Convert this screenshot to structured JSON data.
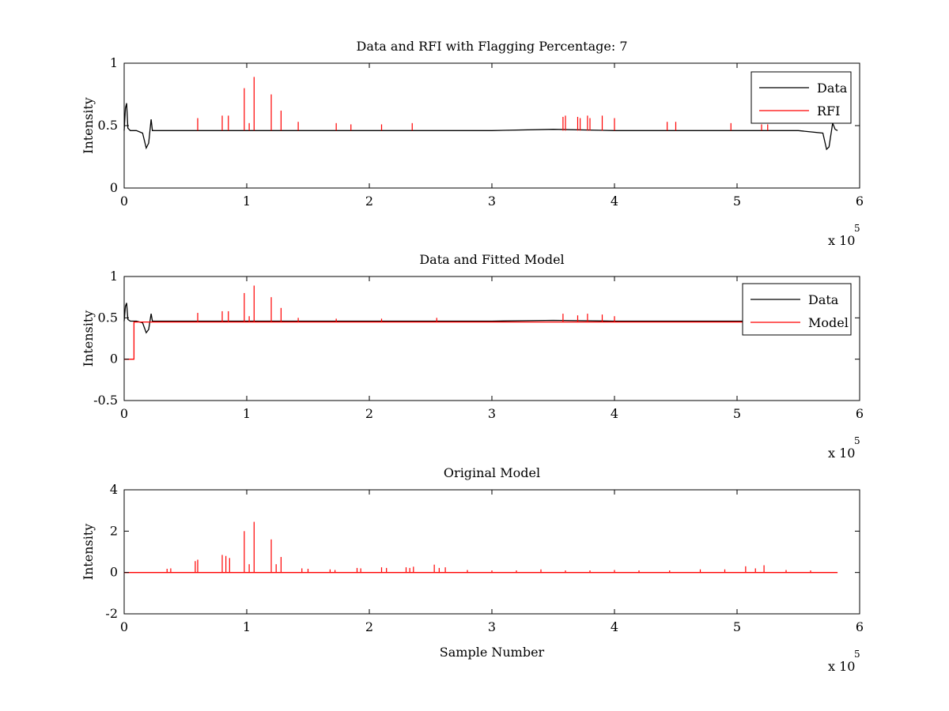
{
  "chart_data": [
    {
      "type": "line",
      "title": "Data and RFI with Flagging Percentage: 7",
      "xlabel": "",
      "ylabel": "Intensity",
      "xlim": [
        0,
        6
      ],
      "ylim": [
        0,
        1
      ],
      "xticks": [
        "0",
        "1",
        "2",
        "3",
        "4",
        "5",
        "6"
      ],
      "yticks": [
        "0",
        "0.5",
        "1"
      ],
      "x_multiplier_base": "x 10",
      "x_multiplier_exp": "5",
      "legend": {
        "position": "top-right",
        "entries": [
          "Data",
          "RFI"
        ]
      },
      "series": [
        {
          "name": "Data",
          "color": "#000000",
          "x": [
            0,
            0.01,
            0.02,
            0.03,
            0.05,
            0.1,
            0.15,
            0.18,
            0.2,
            0.22,
            0.23,
            0.3,
            0.6,
            1.0,
            1.5,
            2.0,
            2.5,
            3.0,
            3.5,
            4.0,
            4.5,
            5.0,
            5.5,
            5.7,
            5.73,
            5.75,
            5.78,
            5.8,
            5.82
          ],
          "values": [
            0.46,
            0.64,
            0.68,
            0.48,
            0.46,
            0.46,
            0.44,
            0.32,
            0.36,
            0.55,
            0.46,
            0.46,
            0.46,
            0.46,
            0.46,
            0.46,
            0.46,
            0.46,
            0.47,
            0.46,
            0.46,
            0.46,
            0.46,
            0.44,
            0.31,
            0.33,
            0.52,
            0.47,
            0.46
          ]
        },
        {
          "name": "RFI",
          "color": "#ff0000",
          "spikes": [
            [
              0.6,
              0.56
            ],
            [
              0.8,
              0.58
            ],
            [
              0.85,
              0.58
            ],
            [
              0.98,
              0.8
            ],
            [
              1.02,
              0.52
            ],
            [
              1.06,
              0.89
            ],
            [
              1.2,
              0.75
            ],
            [
              1.28,
              0.62
            ],
            [
              1.42,
              0.53
            ],
            [
              1.73,
              0.52
            ],
            [
              1.85,
              0.51
            ],
            [
              2.1,
              0.51
            ],
            [
              2.35,
              0.52
            ],
            [
              3.58,
              0.57
            ],
            [
              3.6,
              0.58
            ],
            [
              3.7,
              0.57
            ],
            [
              3.72,
              0.56
            ],
            [
              3.78,
              0.58
            ],
            [
              3.8,
              0.56
            ],
            [
              3.9,
              0.58
            ],
            [
              4.0,
              0.56
            ],
            [
              4.43,
              0.53
            ],
            [
              4.5,
              0.53
            ],
            [
              4.95,
              0.52
            ],
            [
              5.2,
              0.51
            ],
            [
              5.25,
              0.51
            ]
          ]
        }
      ]
    },
    {
      "type": "line",
      "title": "Data and Fitted Model",
      "xlabel": "",
      "ylabel": "Intensity",
      "xlim": [
        0,
        6
      ],
      "ylim": [
        -0.5,
        1
      ],
      "xticks": [
        "0",
        "1",
        "2",
        "3",
        "4",
        "5",
        "6"
      ],
      "yticks": [
        "-0.5",
        "0",
        "0.5",
        "1"
      ],
      "x_multiplier_base": "x 10",
      "x_multiplier_exp": "5",
      "legend": {
        "position": "top-right",
        "entries": [
          "Data",
          "Model"
        ]
      },
      "series": [
        {
          "name": "Data",
          "color": "#000000",
          "x": [
            0,
            0.01,
            0.02,
            0.03,
            0.05,
            0.1,
            0.15,
            0.18,
            0.2,
            0.22,
            0.23,
            0.3,
            0.6,
            1.0,
            1.5,
            2.0,
            2.5,
            3.0,
            3.5,
            4.0,
            4.5,
            5.0,
            5.5,
            5.82
          ],
          "values": [
            0.46,
            0.64,
            0.68,
            0.48,
            0.46,
            0.46,
            0.44,
            0.32,
            0.36,
            0.55,
            0.46,
            0.46,
            0.46,
            0.46,
            0.46,
            0.46,
            0.46,
            0.46,
            0.47,
            0.46,
            0.46,
            0.46,
            0.46,
            0.46
          ]
        },
        {
          "name": "Model",
          "color": "#ff0000",
          "x": [
            0,
            0.08,
            0.08,
            5.82
          ],
          "values": [
            0.0,
            0.0,
            0.45,
            0.45
          ],
          "spikes": [
            [
              0.6,
              0.56
            ],
            [
              0.8,
              0.58
            ],
            [
              0.85,
              0.58
            ],
            [
              0.98,
              0.8
            ],
            [
              1.02,
              0.52
            ],
            [
              1.06,
              0.89
            ],
            [
              1.2,
              0.75
            ],
            [
              1.28,
              0.62
            ],
            [
              1.42,
              0.5
            ],
            [
              1.73,
              0.49
            ],
            [
              2.1,
              0.49
            ],
            [
              2.55,
              0.5
            ],
            [
              3.58,
              0.55
            ],
            [
              3.7,
              0.53
            ],
            [
              3.78,
              0.55
            ],
            [
              3.9,
              0.54
            ],
            [
              4.0,
              0.52
            ]
          ]
        }
      ]
    },
    {
      "type": "line",
      "title": "Original Model",
      "xlabel": "Sample Number",
      "ylabel": "Intensity",
      "xlim": [
        0,
        6
      ],
      "ylim": [
        -2,
        4
      ],
      "xticks": [
        "0",
        "1",
        "2",
        "3",
        "4",
        "5",
        "6"
      ],
      "yticks": [
        "-2",
        "0",
        "2",
        "4"
      ],
      "x_multiplier_base": "x 10",
      "x_multiplier_exp": "5",
      "series": [
        {
          "color": "#ff0000",
          "x": [
            0,
            5.82
          ],
          "values": [
            0,
            0
          ],
          "spikes": [
            [
              0.35,
              0.18
            ],
            [
              0.38,
              0.2
            ],
            [
              0.58,
              0.55
            ],
            [
              0.6,
              0.62
            ],
            [
              0.8,
              0.85
            ],
            [
              0.83,
              0.8
            ],
            [
              0.86,
              0.7
            ],
            [
              0.98,
              2.0
            ],
            [
              1.02,
              0.4
            ],
            [
              1.06,
              2.45
            ],
            [
              1.2,
              1.6
            ],
            [
              1.24,
              0.4
            ],
            [
              1.28,
              0.75
            ],
            [
              1.45,
              0.2
            ],
            [
              1.5,
              0.18
            ],
            [
              1.68,
              0.15
            ],
            [
              1.72,
              0.12
            ],
            [
              1.9,
              0.22
            ],
            [
              1.93,
              0.2
            ],
            [
              2.1,
              0.25
            ],
            [
              2.14,
              0.22
            ],
            [
              2.3,
              0.25
            ],
            [
              2.33,
              0.22
            ],
            [
              2.36,
              0.28
            ],
            [
              2.53,
              0.38
            ],
            [
              2.57,
              0.22
            ],
            [
              2.62,
              0.25
            ],
            [
              2.8,
              0.12
            ],
            [
              3.0,
              0.1
            ],
            [
              3.2,
              0.1
            ],
            [
              3.4,
              0.15
            ],
            [
              3.6,
              0.1
            ],
            [
              3.8,
              0.1
            ],
            [
              4.0,
              0.12
            ],
            [
              4.2,
              0.1
            ],
            [
              4.45,
              0.1
            ],
            [
              4.7,
              0.15
            ],
            [
              4.9,
              0.15
            ],
            [
              5.07,
              0.3
            ],
            [
              5.15,
              0.2
            ],
            [
              5.22,
              0.35
            ],
            [
              5.4,
              0.12
            ],
            [
              5.6,
              0.1
            ]
          ]
        }
      ]
    }
  ]
}
